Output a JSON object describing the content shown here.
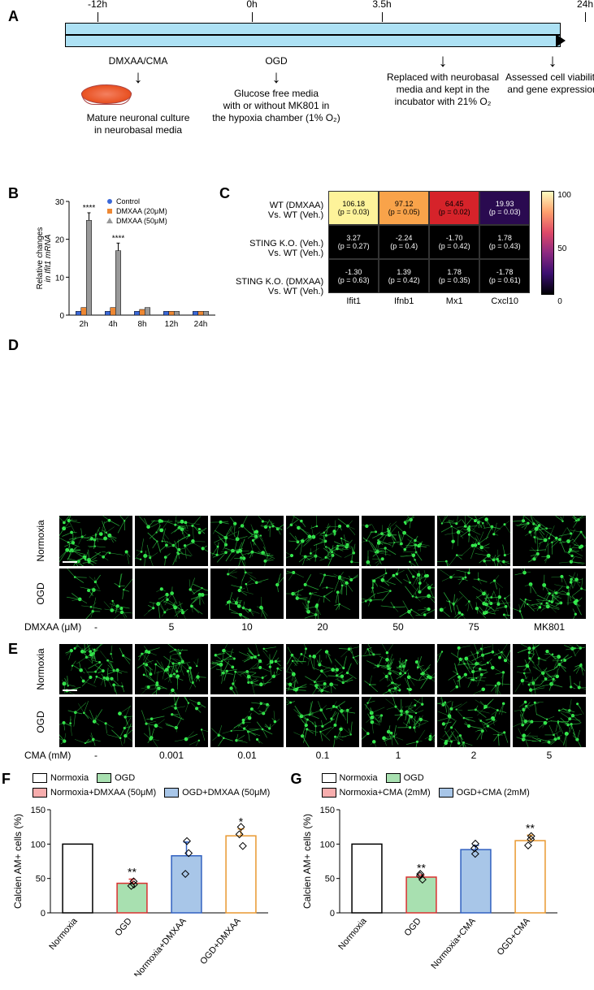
{
  "panelA": {
    "label": "A",
    "ticks": [
      {
        "text": "-12h",
        "x": 40
      },
      {
        "text": "0h",
        "x": 230
      },
      {
        "text": "3.5h",
        "x": 390
      },
      {
        "text": "24h",
        "x": 640
      }
    ],
    "timeline_color": "#ade1f4",
    "col1": {
      "title": "DMXAA/CMA",
      "desc": "Mature neuronal culture\nin neurobasal media"
    },
    "col2": {
      "title": "OGD",
      "desc": "Glucose free media\nwith or without MK801 in\nthe hypoxia chamber (1% O₂)"
    },
    "col3": {
      "desc": "Replaced with neurobasal\nmedia and kept in the\nincubator with 21% O₂"
    },
    "col4": {
      "desc": "Assessed cell viability\nand gene expression"
    }
  },
  "panelB": {
    "label": "B",
    "ylabel": "Relative changes\nin Ifit1 mRNA",
    "ylim": [
      0,
      30
    ],
    "ytick": 10,
    "x_categories": [
      "2h",
      "4h",
      "8h",
      "12h",
      "24h"
    ],
    "legend": [
      {
        "label": "Control",
        "color": "#3a68d8",
        "marker": "circle"
      },
      {
        "label": "DMXAA (20μM)",
        "color": "#ee8833",
        "marker": "square"
      },
      {
        "label": "DMXAA (50μM)",
        "color": "#999999",
        "marker": "triangle"
      }
    ],
    "series": {
      "Control": [
        1,
        1,
        1,
        1,
        1
      ],
      "DMXAA20": [
        2,
        2,
        1.5,
        1,
        1
      ],
      "DMXAA50": [
        25,
        17,
        2,
        1,
        1
      ]
    },
    "errors": {
      "DMXAA50": [
        2,
        2,
        0.5,
        0.3,
        0.3
      ]
    },
    "sig": [
      {
        "x_idx": 0,
        "text": "****"
      },
      {
        "x_idx": 1,
        "text": "****"
      }
    ]
  },
  "panelC": {
    "label": "C",
    "rows": [
      "WT (DMXAA)\nVs. WT (Veh.)",
      "STING K.O. (Veh.)\nVs. WT (Veh.)",
      "STING K.O. (DMXAA)\nVs. WT (Veh.)"
    ],
    "cols": [
      "Ifit1",
      "Ifnb1",
      "Mx1",
      "Cxcl10"
    ],
    "cells": [
      [
        {
          "v": "106.18",
          "p": "(p = 0.03)",
          "bg": "#fef39a"
        },
        {
          "v": "97.12",
          "p": "(p = 0.05)",
          "bg": "#f9a34a"
        },
        {
          "v": "64.45",
          "p": "(p = 0.02)",
          "bg": "#d6232a"
        },
        {
          "v": "19.93",
          "p": "(p = 0.03)",
          "bg": "#2a0a50"
        }
      ],
      [
        {
          "v": "3.27",
          "p": "(p = 0.27)",
          "bg": "#000000"
        },
        {
          "v": "-2.24",
          "p": "(p = 0.4)",
          "bg": "#000000"
        },
        {
          "v": "-1.70",
          "p": "(p = 0.42)",
          "bg": "#000000"
        },
        {
          "v": "1.78",
          "p": "(p = 0.43)",
          "bg": "#000000"
        }
      ],
      [
        {
          "v": "-1.30",
          "p": "(p = 0.63)",
          "bg": "#000000"
        },
        {
          "v": "1.39",
          "p": "(p = 0.42)",
          "bg": "#000000"
        },
        {
          "v": "1.78",
          "p": "(p = 0.35)",
          "bg": "#000000"
        },
        {
          "v": "-1.78",
          "p": "(p = 0.61)",
          "bg": "#000000"
        }
      ]
    ],
    "colorbar": {
      "min": 0,
      "max": 100,
      "tick": 50,
      "stops": [
        "#000004",
        "#3b0f70",
        "#8c2981",
        "#de4968",
        "#fe9f6d",
        "#fcfdbf"
      ]
    }
  },
  "panelD": {
    "label": "D",
    "row_labels": [
      "Normoxia",
      "OGD"
    ],
    "x_prefix": "DMXAA (μM)",
    "cols": [
      "-",
      "5",
      "10",
      "20",
      "50",
      "75",
      "MK801"
    ],
    "density": {
      "Normoxia": [
        1.0,
        1.0,
        1.0,
        1.0,
        1.0,
        1.0,
        1.0
      ],
      "OGD": [
        0.25,
        0.35,
        0.4,
        0.55,
        0.75,
        0.8,
        0.9
      ]
    }
  },
  "panelE": {
    "label": "E",
    "row_labels": [
      "Normoxia",
      "OGD"
    ],
    "x_prefix": "CMA (mM)",
    "cols": [
      "-",
      "0.001",
      "0.01",
      "0.1",
      "1",
      "2",
      "5"
    ],
    "density": {
      "Normoxia": [
        1.0,
        1.0,
        1.0,
        1.0,
        1.0,
        1.0,
        1.0
      ],
      "OGD": [
        0.25,
        0.3,
        0.4,
        0.55,
        0.8,
        0.9,
        0.85
      ]
    }
  },
  "panelF": {
    "label": "F",
    "ylabel": "Calcien AM+ cells (%)",
    "ylim": [
      0,
      150
    ],
    "ytick": 50,
    "legend": [
      {
        "label": "Normoxia",
        "color": "#ffffff"
      },
      {
        "label": "Normoxia+DMXAA (50μM)",
        "color": "#f7adad"
      },
      {
        "label": "OGD",
        "color": "#a8e0b0"
      },
      {
        "label": "OGD+DMXAA (50μM)",
        "color": "#a8c6e8"
      }
    ],
    "bars": [
      {
        "label": "Normoxia",
        "mean": 100,
        "err": 0,
        "color": "#ffffff",
        "pts": [],
        "sig": ""
      },
      {
        "label": "OGD",
        "mean": 43,
        "err": 6,
        "color": "#a8e0b0",
        "edge": "#d93030",
        "pts": [
          38,
          44,
          48
        ],
        "sig": "**"
      },
      {
        "label": "Normoxia+DMXAA",
        "mean": 83,
        "err": 20,
        "color": "#a8c6e8",
        "edge": "#3060c0",
        "pts": [
          55,
          90,
          105
        ],
        "sig": ""
      },
      {
        "label": "OGD+DMXAA",
        "mean": 112,
        "err": 10,
        "color": "#ffffff",
        "edge": "#e89830",
        "pts": [
          100,
          112,
          125
        ],
        "sig": "*"
      }
    ]
  },
  "panelG": {
    "label": "G",
    "ylabel": "Calcien AM+ cells (%)",
    "ylim": [
      0,
      150
    ],
    "ytick": 50,
    "legend": [
      {
        "label": "Normoxia",
        "color": "#ffffff"
      },
      {
        "label": "Normoxia+CMA (2mM)",
        "color": "#f7adad"
      },
      {
        "label": "OGD",
        "color": "#a8e0b0"
      },
      {
        "label": "OGD+CMA (2mM)",
        "color": "#a8c6e8"
      }
    ],
    "bars": [
      {
        "label": "Normoxia",
        "mean": 100,
        "err": 0,
        "color": "#ffffff",
        "pts": [],
        "sig": ""
      },
      {
        "label": "OGD",
        "mean": 52,
        "err": 3,
        "color": "#a8e0b0",
        "edge": "#d93030",
        "pts": [
          50,
          52,
          55
        ],
        "sig": "**"
      },
      {
        "label": "Normoxia+CMA",
        "mean": 92,
        "err": 6,
        "color": "#a8c6e8",
        "edge": "#3060c0",
        "pts": [
          85,
          92,
          100
        ],
        "sig": ""
      },
      {
        "label": "OGD+CMA",
        "mean": 105,
        "err": 8,
        "color": "#ffffff",
        "edge": "#e89830",
        "pts": [
          95,
          108,
          113
        ],
        "sig": "**"
      }
    ]
  }
}
